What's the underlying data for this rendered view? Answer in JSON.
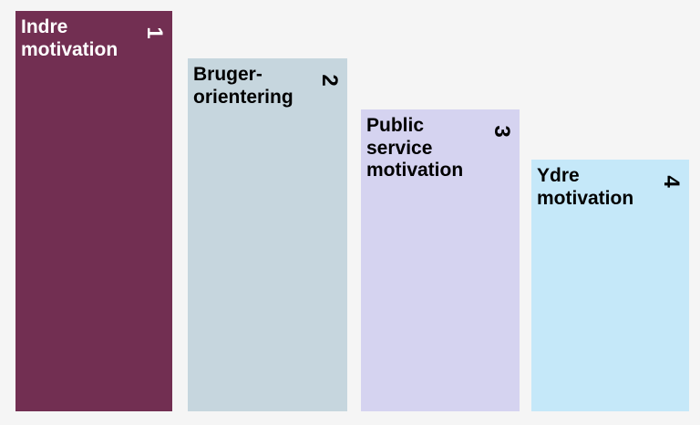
{
  "blocks": [
    {
      "lines": [
        "Indre",
        "motivation"
      ],
      "number": 1
    },
    {
      "lines": [
        "Bruger-",
        "orientering"
      ],
      "number": 2
    },
    {
      "lines": [
        "Public",
        "service",
        "motivation"
      ],
      "number": 3
    },
    {
      "lines": [
        "Ydre",
        "motivation"
      ],
      "number": 4
    }
  ]
}
